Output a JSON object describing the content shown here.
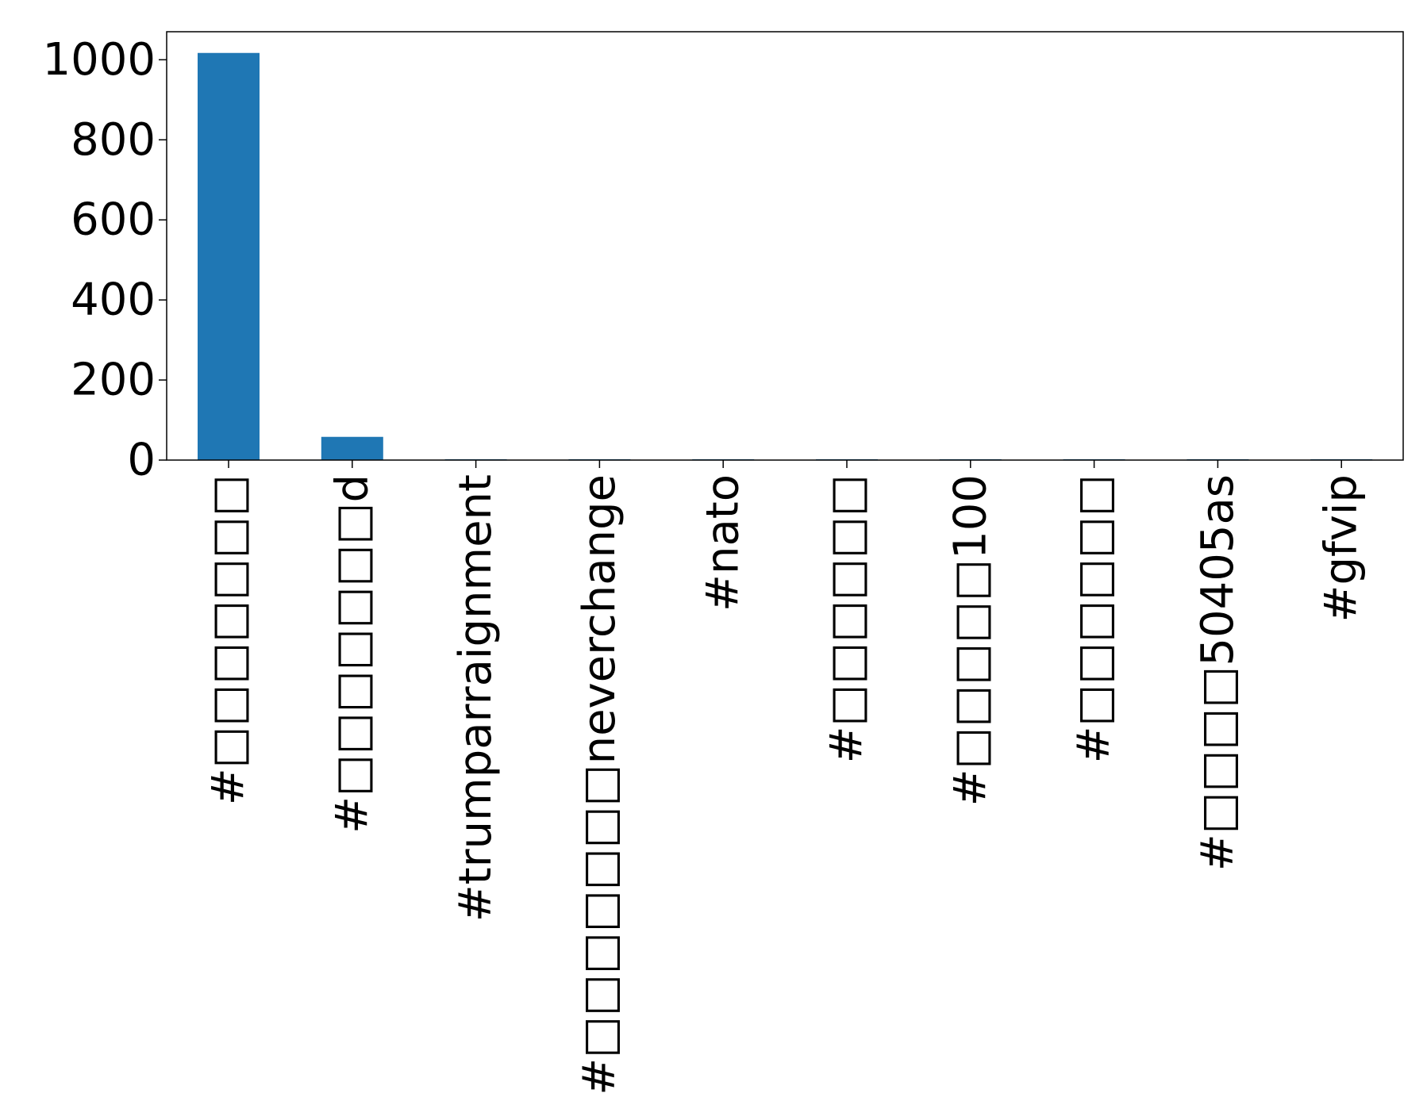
{
  "chart_data": {
    "type": "bar",
    "title": "",
    "xlabel": "",
    "ylabel": "",
    "categories": [
      "#□□□□□□□",
      "#□□□□□□□d",
      "#trumparraignment",
      "#□□□□□□□neverchange",
      "#nato",
      "#□□□□□□",
      "#□□□□□100",
      "#□□□□□□",
      "#□□□□50405as",
      "#gfvip"
    ],
    "values": [
      1017,
      58,
      2,
      2,
      2,
      2,
      2,
      2,
      2,
      2
    ],
    "ylim": [
      0,
      1070
    ],
    "yticks": [
      0,
      200,
      400,
      600,
      800,
      1000
    ],
    "ytick_labels": [
      "0",
      "200",
      "400",
      "600",
      "800",
      "1000"
    ],
    "grid": false,
    "legend": "none",
    "bar_color": "#1f77b4"
  }
}
